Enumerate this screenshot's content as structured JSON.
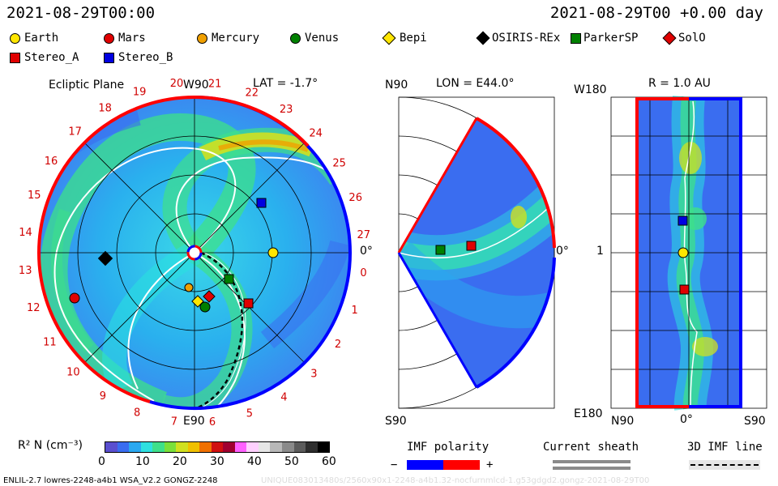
{
  "header": {
    "date_left": "2021-08-29T00:00",
    "date_right": "2021-08-29T00 +0.00 day"
  },
  "legend": {
    "bodies": [
      {
        "name": "Earth",
        "shape": "circle",
        "color": "#ffe600"
      },
      {
        "name": "Mars",
        "shape": "circle",
        "color": "#e00000"
      },
      {
        "name": "Mercury",
        "shape": "circle",
        "color": "#f0a000"
      },
      {
        "name": "Venus",
        "shape": "circle",
        "color": "#008000"
      },
      {
        "name": "Bepi",
        "shape": "diamond",
        "color": "#ffe600"
      },
      {
        "name": "OSIRIS-REx",
        "shape": "diamond",
        "color": "#000000"
      },
      {
        "name": "ParkerSP",
        "shape": "square",
        "color": "#008000"
      },
      {
        "name": "SolO",
        "shape": "diamond",
        "color": "#e00000"
      },
      {
        "name": "Stereo_A",
        "shape": "square",
        "color": "#e00000"
      },
      {
        "name": "Stereo_B",
        "shape": "square",
        "color": "#0000e0"
      }
    ]
  },
  "panel_ecliptic": {
    "title": "Ecliptic Plane",
    "lat": "LAT = -1.7°",
    "top_label": "W90",
    "bottom_label": "E90",
    "right_label": "0°",
    "sectors": [
      "20",
      "21",
      "22",
      "23",
      "24",
      "25",
      "26",
      "27",
      "0",
      "1",
      "2",
      "3",
      "4",
      "5",
      "6",
      "7",
      "8",
      "9",
      "10",
      "11",
      "12",
      "13",
      "14",
      "15",
      "16",
      "17",
      "18",
      "19"
    ]
  },
  "panel_meridional": {
    "lon": "LON = E44.0°",
    "top_label": "N90",
    "bottom_label": "S90",
    "right_label": "0°"
  },
  "panel_radial": {
    "title": "R = 1.0 AU",
    "top_label": "W180",
    "bottom_label": "E180",
    "mid_label": "1",
    "x_left": "N90",
    "x_mid": "0°",
    "x_right": "S90"
  },
  "colorbar": {
    "label": "R² N (cm⁻³)",
    "ticks": [
      "0",
      "10",
      "20",
      "30",
      "40",
      "50",
      "60"
    ],
    "colors": [
      "#5a4fcf",
      "#3a6df0",
      "#2aa8f0",
      "#2fe0e0",
      "#3ee08a",
      "#7ae03a",
      "#d0e020",
      "#f0c000",
      "#f07000",
      "#d01010",
      "#a00030",
      "#ff60ff",
      "#ffd0ff",
      "#e6e6e6",
      "#b8b8b8",
      "#8a8a8a",
      "#5c5c5c",
      "#2e2e2e",
      "#000000"
    ]
  },
  "imf_polarity": {
    "label": "IMF polarity",
    "minus": "−",
    "plus": "+",
    "neg_color": "#0000ff",
    "pos_color": "#ff0000"
  },
  "current_sheath": {
    "label": "Current sheath"
  },
  "imf_line": {
    "label": "3D IMF line"
  },
  "footer": {
    "left": "ENLIL-2.7 lowres-2248-a4b1 WSA_V2.2 GONGZ-2248",
    "right": "UNIQUE083013480s/2560x90x1-2248-a4b1.32-nocfurnmlcd-1.g53gdgd2.gongz-2021-08-29T00"
  }
}
